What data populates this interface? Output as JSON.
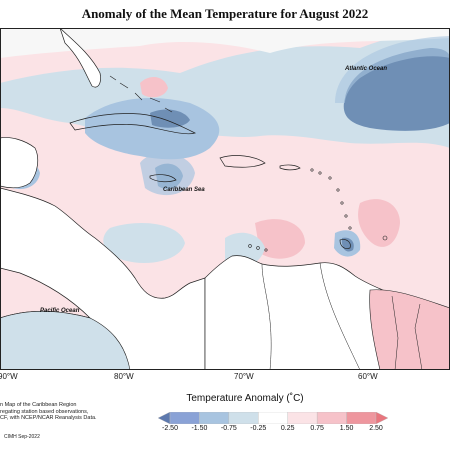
{
  "title": "Anomaly of the Mean Temperature for August 2022",
  "labels": {
    "atlantic": "Atlantic Ocean",
    "caribbean": "Caribbean Sea",
    "pacific": "Pacific Ocean"
  },
  "lon_ticks": [
    "90°W",
    "80°W",
    "70°W",
    "60°W"
  ],
  "caption_lines": [
    "n Map of the Caribbean Region",
    "regating station based observations,",
    "CF, with NCEP/NCAR Reanalysis Data."
  ],
  "credit": "CIMH Sep-2022",
  "legend": {
    "title": "Temperature Anomaly (˚C)",
    "ticks": [
      "-2.50",
      "-1.50",
      "-0.75",
      "-0.25",
      "0.25",
      "0.75",
      "1.50",
      "2.50"
    ],
    "colors": [
      "#5d79ae",
      "#8aa2d6",
      "#a8c4e0",
      "#cfe0ea",
      "#ffffff",
      "#fbe3e6",
      "#f6c2c9",
      "#ee969e",
      "#e8767e"
    ]
  },
  "colors": {
    "land": "#ffffff",
    "warm_light": "#fbe3e6",
    "warm_mid": "#f6c2c9",
    "cool_light": "#cfe0ea",
    "cool_mid": "#a8c4e0",
    "cool_dark": "#6f8fb5",
    "neutral": "#f7f7f7"
  }
}
